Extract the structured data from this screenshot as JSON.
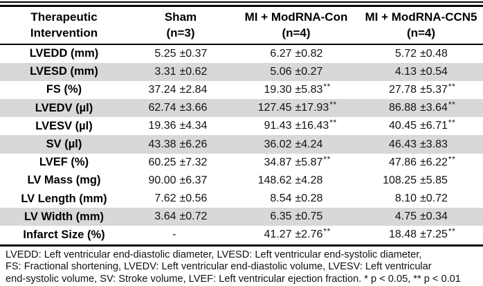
{
  "meta": {
    "colors": {
      "row_shade": "#d8d8d8",
      "rule": "#000000",
      "text": "#000000"
    }
  },
  "table": {
    "row_header": {
      "line1": "Therapeutic",
      "line2": "Intervention"
    },
    "group_headers": [
      {
        "name": "Sham",
        "n": "(n=3)"
      },
      {
        "name": "MI + ModRNA-Con",
        "n": "(n=4)"
      },
      {
        "name": "MI + ModRNA-CCN5",
        "n": "(n=4)"
      }
    ],
    "rows": [
      {
        "label": "LVEDD (mm)",
        "shaded": false,
        "values": [
          {
            "mean": "5.25",
            "sd": "±0.37",
            "sig": ""
          },
          {
            "mean": "6.27",
            "sd": "±0.82",
            "sig": ""
          },
          {
            "mean": "5.72",
            "sd": "±0.48",
            "sig": ""
          }
        ]
      },
      {
        "label": "LVESD (mm)",
        "shaded": true,
        "values": [
          {
            "mean": "3.31",
            "sd": "±0.62",
            "sig": ""
          },
          {
            "mean": "5.06",
            "sd": "±0.27",
            "sig": ""
          },
          {
            "mean": "4.13",
            "sd": "±0.54",
            "sig": ""
          }
        ]
      },
      {
        "label": "FS (%)",
        "shaded": false,
        "values": [
          {
            "mean": "37.24",
            "sd": "±2.84",
            "sig": ""
          },
          {
            "mean": "19.30",
            "sd": "±5.83",
            "sig": "**"
          },
          {
            "mean": "27.78",
            "sd": "±5.37",
            "sig": "**"
          }
        ]
      },
      {
        "label": "LVEDV (µl)",
        "shaded": true,
        "values": [
          {
            "mean": "62.74",
            "sd": "±3.66",
            "sig": ""
          },
          {
            "mean": "127.45",
            "sd": "±17.93",
            "sig": "**"
          },
          {
            "mean": "86.88",
            "sd": "±3.64",
            "sig": "**"
          }
        ]
      },
      {
        "label": "LVESV (µl)",
        "shaded": false,
        "values": [
          {
            "mean": "19.36",
            "sd": "±4.34",
            "sig": ""
          },
          {
            "mean": "91.43",
            "sd": "±16.43",
            "sig": "**"
          },
          {
            "mean": "40.45",
            "sd": "±6.71",
            "sig": "**"
          }
        ]
      },
      {
        "label": "SV (µl)",
        "shaded": true,
        "values": [
          {
            "mean": "43.38",
            "sd": "±6.26",
            "sig": ""
          },
          {
            "mean": "36.02",
            "sd": "±4.24",
            "sig": ""
          },
          {
            "mean": "46.43",
            "sd": "±3.83",
            "sig": ""
          }
        ]
      },
      {
        "label": "LVEF (%)",
        "shaded": false,
        "values": [
          {
            "mean": "60.25",
            "sd": "±7.32",
            "sig": ""
          },
          {
            "mean": "34.87",
            "sd": "±5.87",
            "sig": "**"
          },
          {
            "mean": "47.86",
            "sd": "±6.22",
            "sig": "**"
          }
        ]
      },
      {
        "label": "LV Mass (mg)",
        "shaded": false,
        "values": [
          {
            "mean": "90.00",
            "sd": "±6.37",
            "sig": ""
          },
          {
            "mean": "148.62",
            "sd": "±4.28",
            "sig": ""
          },
          {
            "mean": "108.25",
            "sd": "±5.85",
            "sig": ""
          }
        ]
      },
      {
        "label": "LV Length (mm)",
        "shaded": false,
        "values": [
          {
            "mean": "7.62",
            "sd": "±0.56",
            "sig": ""
          },
          {
            "mean": "8.54",
            "sd": "±0.28",
            "sig": ""
          },
          {
            "mean": "8.10",
            "sd": "±0.72",
            "sig": ""
          }
        ]
      },
      {
        "label": "LV Width (mm)",
        "shaded": true,
        "values": [
          {
            "mean": "3.64",
            "sd": "±0.72",
            "sig": ""
          },
          {
            "mean": "6.35",
            "sd": "±0.75",
            "sig": ""
          },
          {
            "mean": "4.75",
            "sd": "±0.34",
            "sig": ""
          }
        ]
      },
      {
        "label": "Infarct Size (%)",
        "shaded": false,
        "values": [
          {
            "mean": "-",
            "sd": "",
            "sig": ""
          },
          {
            "mean": "41.27",
            "sd": "±2.76",
            "sig": "**"
          },
          {
            "mean": "18.48",
            "sd": "±7.25",
            "sig": "**"
          }
        ]
      }
    ]
  },
  "footnote": {
    "lines": [
      "LVEDD: Left ventricular end-diastolic diameter, LVESD: Left ventricular end-systolic diameter,",
      "FS: Fractional shortening, LVEDV: Left ventricular end-diastolic volume, LVESV: Left ventricular",
      "end-systolic volume, SV: Stroke volume, LVEF: Left ventricular ejection fraction. * p < 0.05, ** p < 0.01"
    ]
  }
}
